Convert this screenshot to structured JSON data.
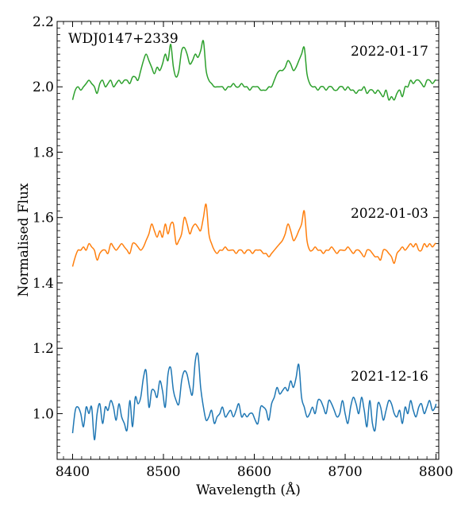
{
  "chart_data": {
    "type": "line",
    "title": "",
    "xlabel": "Wavelength (Å)",
    "ylabel": "Normalised Flux",
    "xlim": [
      8383,
      8803
    ],
    "ylim": [
      0.86,
      2.2
    ],
    "xticks": [
      8400,
      8500,
      8600,
      8700,
      8800
    ],
    "xtick_labels": [
      "8400",
      "8500",
      "8600",
      "8700",
      "8800"
    ],
    "yticks": [
      1.0,
      1.2,
      1.4,
      1.6,
      1.8,
      2.0,
      2.2
    ],
    "ytick_labels": [
      "1.0",
      "1.2",
      "1.4",
      "1.6",
      "1.8",
      "2.0",
      "2.2"
    ],
    "grid": false,
    "object_label": "WDJ0147+2339",
    "series": [
      {
        "name": "2021-12-16",
        "color": "#1f77b4",
        "x": [
          8400,
          8403,
          8406,
          8409,
          8412,
          8415,
          8418,
          8421,
          8424,
          8427,
          8430,
          8433,
          8436,
          8439,
          8442,
          8445,
          8448,
          8451,
          8454,
          8457,
          8460,
          8463,
          8466,
          8469,
          8472,
          8475,
          8478,
          8481,
          8484,
          8487,
          8490,
          8493,
          8496,
          8499,
          8502,
          8505,
          8508,
          8511,
          8514,
          8517,
          8520,
          8523,
          8526,
          8529,
          8532,
          8535,
          8538,
          8541,
          8544,
          8547,
          8550,
          8553,
          8556,
          8559,
          8562,
          8565,
          8568,
          8571,
          8574,
          8577,
          8580,
          8583,
          8586,
          8589,
          8592,
          8595,
          8598,
          8601,
          8604,
          8607,
          8610,
          8613,
          8616,
          8619,
          8622,
          8625,
          8628,
          8631,
          8634,
          8637,
          8640,
          8643,
          8646,
          8649,
          8652,
          8655,
          8658,
          8661,
          8664,
          8667,
          8670,
          8673,
          8676,
          8679,
          8682,
          8685,
          8688,
          8691,
          8694,
          8697,
          8700,
          8703,
          8706,
          8709,
          8712,
          8715,
          8718,
          8721,
          8724,
          8727,
          8730,
          8733,
          8736,
          8739,
          8742,
          8745,
          8748,
          8751,
          8754,
          8757,
          8760,
          8763,
          8766,
          8769,
          8772,
          8775,
          8778,
          8781,
          8784,
          8787,
          8790,
          8793,
          8796,
          8799,
          8800
        ],
        "y": [
          0.94,
          1.01,
          1.02,
          1.0,
          0.96,
          1.02,
          1.0,
          1.02,
          0.92,
          1.0,
          1.03,
          0.97,
          1.02,
          1.01,
          1.04,
          1.02,
          0.98,
          1.03,
          0.99,
          0.97,
          0.95,
          1.04,
          0.96,
          1.05,
          1.03,
          1.05,
          1.11,
          1.13,
          1.02,
          1.07,
          1.07,
          1.05,
          1.1,
          1.07,
          1.02,
          1.12,
          1.14,
          1.07,
          1.04,
          1.03,
          1.1,
          1.13,
          1.12,
          1.08,
          1.06,
          1.16,
          1.18,
          1.08,
          1.02,
          0.98,
          0.99,
          1.01,
          0.97,
          0.99,
          1.0,
          1.02,
          0.99,
          1.0,
          1.01,
          0.99,
          1.01,
          1.03,
          0.99,
          1.0,
          0.99,
          1.0,
          1.0,
          0.98,
          0.97,
          1.02,
          1.02,
          1.01,
          0.98,
          1.03,
          1.05,
          1.08,
          1.06,
          1.07,
          1.08,
          1.07,
          1.1,
          1.08,
          1.11,
          1.15,
          1.05,
          1.02,
          0.99,
          1.0,
          1.02,
          1.0,
          1.04,
          1.04,
          1.02,
          1.0,
          1.04,
          1.03,
          1.01,
          0.99,
          1.0,
          1.04,
          1.0,
          0.97,
          1.02,
          1.05,
          1.03,
          1.0,
          1.05,
          1.01,
          0.96,
          1.04,
          0.97,
          0.95,
          1.03,
          1.02,
          0.98,
          1.01,
          1.04,
          1.03,
          1.0,
          0.99,
          1.01,
          0.97,
          1.02,
          1.0,
          1.04,
          1.01,
          0.99,
          1.02,
          1.03,
          1.0,
          1.02,
          1.04,
          1.01,
          1.02,
          1.03
        ]
      },
      {
        "name": "2022-01-03",
        "color": "#ff7f0e",
        "x": [
          8400,
          8403,
          8406,
          8409,
          8412,
          8415,
          8418,
          8421,
          8424,
          8427,
          8430,
          8433,
          8436,
          8439,
          8442,
          8445,
          8448,
          8451,
          8454,
          8457,
          8460,
          8463,
          8466,
          8469,
          8472,
          8475,
          8478,
          8481,
          8484,
          8487,
          8490,
          8493,
          8496,
          8499,
          8502,
          8505,
          8508,
          8511,
          8514,
          8517,
          8520,
          8523,
          8526,
          8529,
          8532,
          8535,
          8538,
          8541,
          8544,
          8547,
          8550,
          8553,
          8556,
          8559,
          8562,
          8565,
          8568,
          8571,
          8574,
          8577,
          8580,
          8583,
          8586,
          8589,
          8592,
          8595,
          8598,
          8601,
          8604,
          8607,
          8610,
          8613,
          8616,
          8619,
          8622,
          8625,
          8628,
          8631,
          8634,
          8637,
          8640,
          8643,
          8646,
          8649,
          8652,
          8655,
          8658,
          8661,
          8664,
          8667,
          8670,
          8673,
          8676,
          8679,
          8682,
          8685,
          8688,
          8691,
          8694,
          8697,
          8700,
          8703,
          8706,
          8709,
          8712,
          8715,
          8718,
          8721,
          8724,
          8727,
          8730,
          8733,
          8736,
          8739,
          8742,
          8745,
          8748,
          8751,
          8754,
          8757,
          8760,
          8763,
          8766,
          8769,
          8772,
          8775,
          8778,
          8781,
          8784,
          8787,
          8790,
          8793,
          8796,
          8799,
          8800
        ],
        "y": [
          1.45,
          1.48,
          1.5,
          1.5,
          1.51,
          1.5,
          1.52,
          1.51,
          1.5,
          1.47,
          1.49,
          1.5,
          1.5,
          1.49,
          1.52,
          1.51,
          1.5,
          1.51,
          1.52,
          1.51,
          1.5,
          1.49,
          1.52,
          1.52,
          1.51,
          1.5,
          1.51,
          1.53,
          1.55,
          1.58,
          1.56,
          1.54,
          1.56,
          1.54,
          1.58,
          1.55,
          1.58,
          1.58,
          1.52,
          1.53,
          1.55,
          1.6,
          1.58,
          1.55,
          1.57,
          1.58,
          1.57,
          1.56,
          1.6,
          1.64,
          1.55,
          1.52,
          1.5,
          1.49,
          1.5,
          1.5,
          1.51,
          1.5,
          1.5,
          1.5,
          1.49,
          1.5,
          1.5,
          1.49,
          1.5,
          1.5,
          1.49,
          1.5,
          1.5,
          1.5,
          1.49,
          1.49,
          1.48,
          1.49,
          1.5,
          1.51,
          1.52,
          1.53,
          1.55,
          1.58,
          1.56,
          1.53,
          1.54,
          1.56,
          1.58,
          1.62,
          1.53,
          1.5,
          1.5,
          1.51,
          1.5,
          1.5,
          1.49,
          1.5,
          1.5,
          1.51,
          1.5,
          1.49,
          1.5,
          1.5,
          1.5,
          1.51,
          1.5,
          1.49,
          1.5,
          1.5,
          1.49,
          1.48,
          1.5,
          1.5,
          1.49,
          1.48,
          1.48,
          1.47,
          1.5,
          1.5,
          1.49,
          1.48,
          1.46,
          1.49,
          1.5,
          1.51,
          1.5,
          1.51,
          1.52,
          1.51,
          1.52,
          1.5,
          1.5,
          1.52,
          1.51,
          1.52,
          1.51,
          1.52,
          1.52
        ]
      },
      {
        "name": "2022-01-17",
        "color": "#2ca02c",
        "x": [
          8400,
          8403,
          8406,
          8409,
          8412,
          8415,
          8418,
          8421,
          8424,
          8427,
          8430,
          8433,
          8436,
          8439,
          8442,
          8445,
          8448,
          8451,
          8454,
          8457,
          8460,
          8463,
          8466,
          8469,
          8472,
          8475,
          8478,
          8481,
          8484,
          8487,
          8490,
          8493,
          8496,
          8499,
          8502,
          8505,
          8508,
          8511,
          8514,
          8517,
          8520,
          8523,
          8526,
          8529,
          8532,
          8535,
          8538,
          8541,
          8544,
          8547,
          8550,
          8553,
          8556,
          8559,
          8562,
          8565,
          8568,
          8571,
          8574,
          8577,
          8580,
          8583,
          8586,
          8589,
          8592,
          8595,
          8598,
          8601,
          8604,
          8607,
          8610,
          8613,
          8616,
          8619,
          8622,
          8625,
          8628,
          8631,
          8634,
          8637,
          8640,
          8643,
          8646,
          8649,
          8652,
          8655,
          8658,
          8661,
          8664,
          8667,
          8670,
          8673,
          8676,
          8679,
          8682,
          8685,
          8688,
          8691,
          8694,
          8697,
          8700,
          8703,
          8706,
          8709,
          8712,
          8715,
          8718,
          8721,
          8724,
          8727,
          8730,
          8733,
          8736,
          8739,
          8742,
          8745,
          8748,
          8751,
          8754,
          8757,
          8760,
          8763,
          8766,
          8769,
          8772,
          8775,
          8778,
          8781,
          8784,
          8787,
          8790,
          8793,
          8796,
          8799,
          8800
        ],
        "y": [
          1.96,
          1.99,
          2.0,
          1.99,
          2.0,
          2.01,
          2.02,
          2.01,
          2.0,
          1.98,
          2.01,
          2.02,
          2.0,
          2.01,
          2.02,
          2.0,
          2.01,
          2.02,
          2.01,
          2.02,
          2.02,
          2.01,
          2.03,
          2.03,
          2.02,
          2.05,
          2.08,
          2.1,
          2.08,
          2.06,
          2.04,
          2.06,
          2.05,
          2.07,
          2.1,
          2.08,
          2.13,
          2.06,
          2.03,
          2.05,
          2.11,
          2.12,
          2.1,
          2.07,
          2.08,
          2.1,
          2.09,
          2.11,
          2.14,
          2.05,
          2.02,
          2.01,
          2.0,
          2.0,
          2.0,
          2.0,
          1.99,
          2.0,
          2.0,
          2.01,
          2.0,
          2.0,
          2.01,
          2.0,
          2.0,
          1.99,
          2.0,
          2.0,
          2.0,
          1.99,
          1.99,
          1.99,
          2.0,
          2.0,
          2.02,
          2.04,
          2.05,
          2.05,
          2.06,
          2.08,
          2.07,
          2.05,
          2.06,
          2.08,
          2.1,
          2.12,
          2.04,
          2.01,
          2.0,
          2.0,
          1.99,
          2.0,
          2.0,
          1.99,
          2.0,
          2.0,
          1.99,
          1.99,
          2.0,
          2.0,
          1.99,
          2.0,
          1.99,
          1.99,
          1.98,
          1.99,
          1.99,
          2.0,
          1.98,
          1.99,
          1.99,
          1.98,
          1.99,
          1.98,
          1.97,
          1.99,
          1.96,
          1.97,
          1.96,
          1.98,
          1.99,
          1.97,
          2.0,
          2.0,
          2.02,
          2.01,
          2.02,
          2.02,
          2.01,
          2.0,
          2.02,
          2.02,
          2.01,
          2.02,
          2.02
        ]
      }
    ],
    "annotations": [
      "2022-01-17",
      "2022-01-03",
      "2021-12-16"
    ]
  }
}
